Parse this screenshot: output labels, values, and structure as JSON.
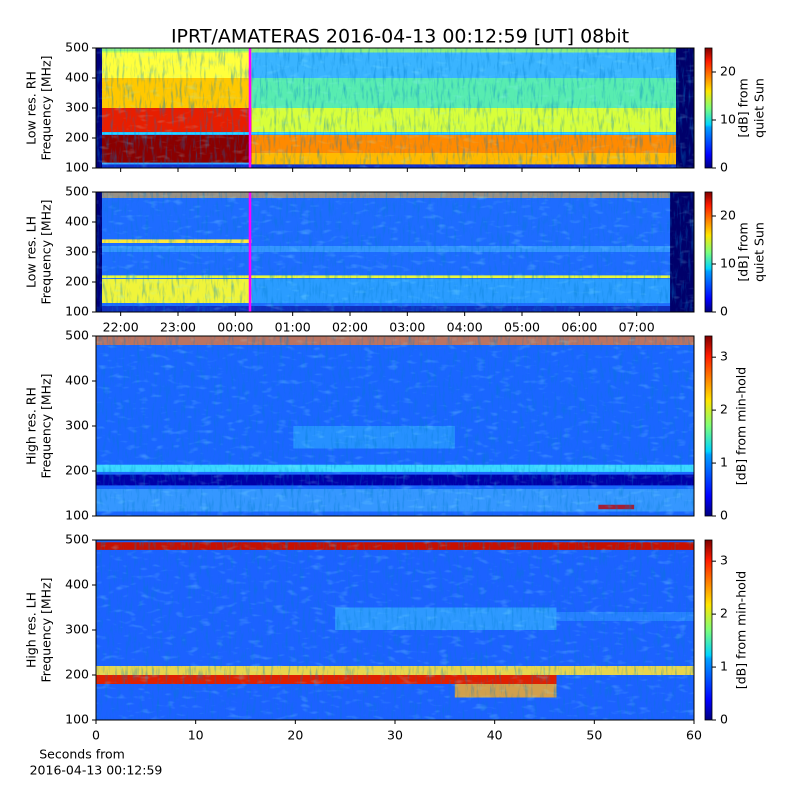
{
  "title": "IPRT/AMATERAS 2016-04-13 00:12:59 [UT]   08bit",
  "chart_data": [
    {
      "type": "heatmap",
      "ylabel": [
        "Low res. RH",
        "Frequency [MHz]"
      ],
      "ylim": [
        100,
        500
      ],
      "yticks": [
        100,
        200,
        300,
        400,
        500
      ],
      "colormap": "jet",
      "clim": [
        0,
        25
      ],
      "cticks": [
        0,
        10,
        20
      ],
      "clabel": [
        "[dB] from",
        "quiet Sun"
      ]
    },
    {
      "type": "heatmap",
      "ylabel": [
        "Low res. LH",
        "Frequency [MHz]"
      ],
      "ylim": [
        100,
        500
      ],
      "yticks": [
        100,
        200,
        300,
        400,
        500
      ],
      "xlim": [
        21.57,
        32.0
      ],
      "xticks": [
        {
          "value": 22,
          "label": "22:00"
        },
        {
          "value": 23,
          "label": "23:00"
        },
        {
          "value": 24,
          "label": "00:00"
        },
        {
          "value": 25,
          "label": "01:00"
        },
        {
          "value": 26,
          "label": "02:00"
        },
        {
          "value": 27,
          "label": "03:00"
        },
        {
          "value": 28,
          "label": "04:00"
        },
        {
          "value": 29,
          "label": "05:00"
        },
        {
          "value": 30,
          "label": "06:00"
        },
        {
          "value": 31,
          "label": "07:00"
        }
      ],
      "colormap": "jet",
      "clim": [
        0,
        25
      ],
      "cticks": [
        0,
        10,
        20
      ],
      "clabel": [
        "[dB] from",
        "quiet Sun"
      ]
    },
    {
      "type": "heatmap",
      "ylabel": [
        "High res. RH",
        "Frequency [MHz]"
      ],
      "ylim": [
        100,
        500
      ],
      "yticks": [
        100,
        200,
        300,
        400,
        500
      ],
      "colormap": "jet",
      "clim": [
        0,
        3.4
      ],
      "cticks": [
        0,
        1,
        2,
        3
      ],
      "clabel": [
        "[dB] from min-hold"
      ]
    },
    {
      "type": "heatmap",
      "ylabel": [
        "High res. LH",
        "Frequency [MHz]"
      ],
      "ylim": [
        100,
        500
      ],
      "yticks": [
        100,
        200,
        300,
        400,
        500
      ],
      "xlim": [
        0,
        60
      ],
      "xticks": [
        0,
        10,
        20,
        30,
        40,
        50,
        60
      ],
      "xlabel": [
        "Seconds from",
        "2016-04-13 00:12:59"
      ],
      "colormap": "jet",
      "clim": [
        0,
        3.4
      ],
      "cticks": [
        0,
        1,
        2,
        3
      ],
      "clabel": [
        "[dB] from min-hold"
      ]
    }
  ]
}
